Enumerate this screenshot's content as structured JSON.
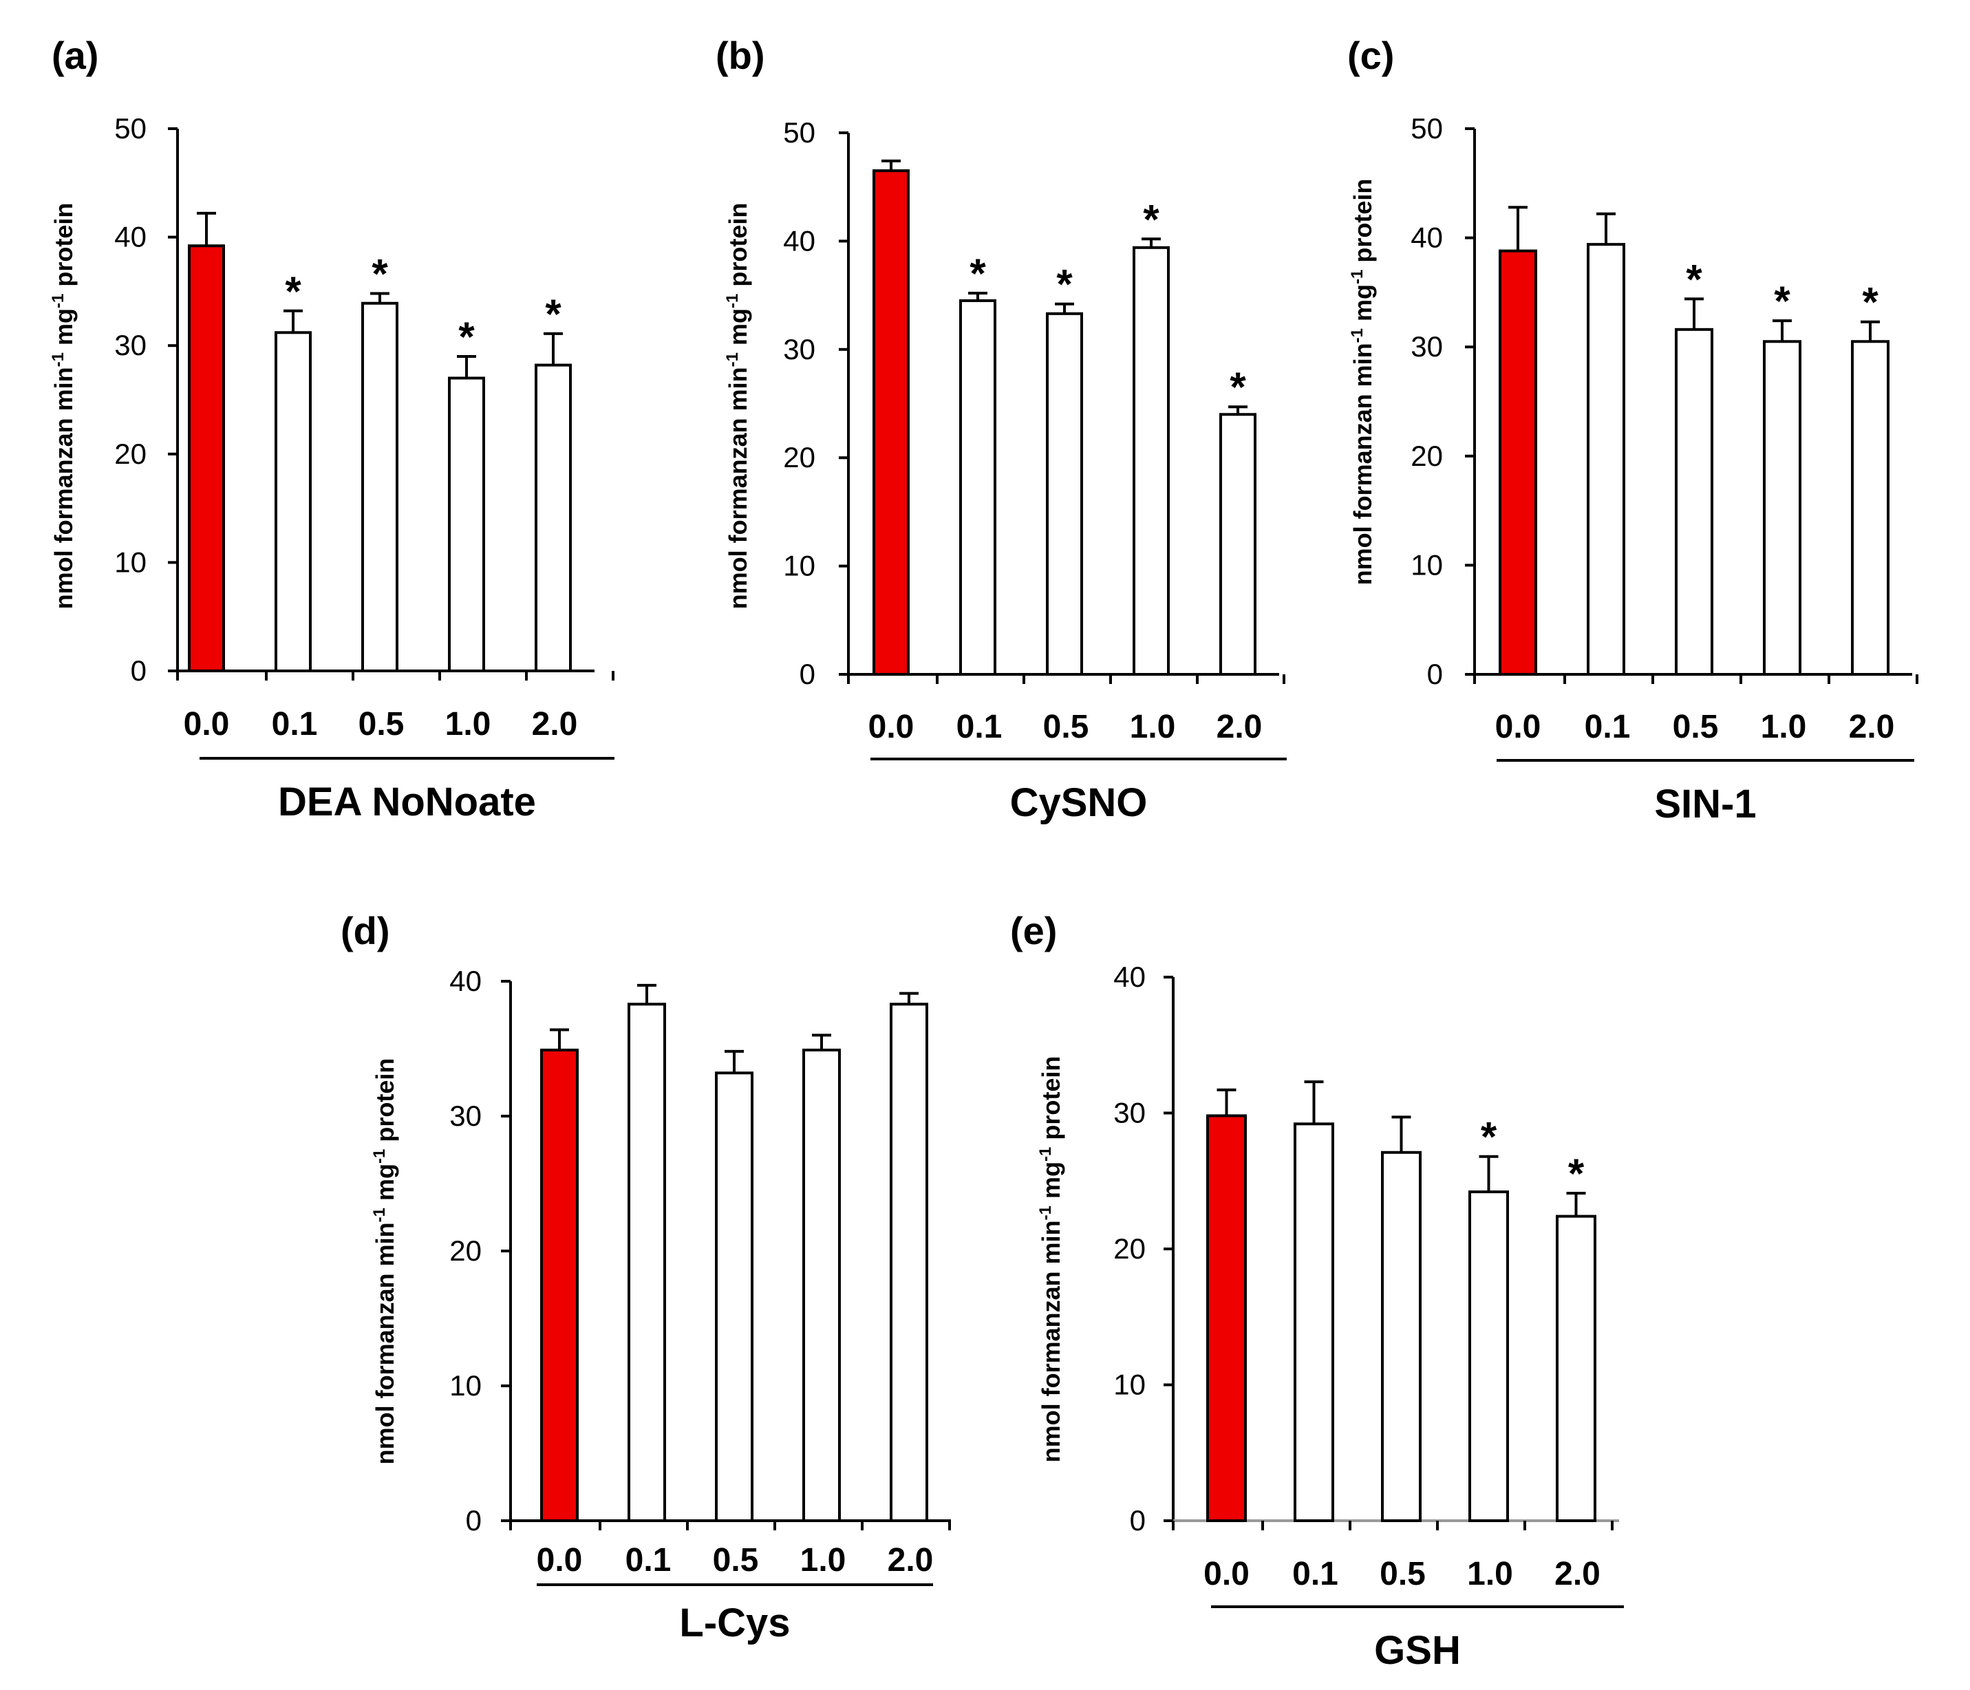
{
  "figure": {
    "colors": {
      "control": "#ee0000",
      "treated": "#ffffff",
      "stroke": "#000000",
      "axis_d_e_baseline": "#999999"
    }
  },
  "chart_data": [
    {
      "panel": "(a)",
      "type": "bar",
      "categories": [
        "0.0",
        "0.1",
        "0.5",
        "1.0",
        "2.0"
      ],
      "values": [
        39.2,
        31.2,
        33.9,
        27.0,
        28.2
      ],
      "errors": [
        3.0,
        2.0,
        0.9,
        2.0,
        2.9
      ],
      "significant": [
        false,
        true,
        true,
        true,
        true
      ],
      "sig_marker": "*",
      "ylabel": "nmol formanzan min",
      "ylabel_sup1": "-1",
      "ylabel_mid": " mg",
      "ylabel_sup2": "-1",
      "ylabel_end": " protein",
      "xlabel": "DEA NoNoate",
      "ylim": [
        0,
        50
      ],
      "yticks": [
        "0",
        "10",
        "20",
        "30",
        "40",
        "50"
      ]
    },
    {
      "panel": "(b)",
      "type": "bar",
      "categories": [
        "0.0",
        "0.1",
        "0.5",
        "1.0",
        "2.0"
      ],
      "values": [
        46.5,
        34.5,
        33.3,
        39.4,
        24.0
      ],
      "errors": [
        0.9,
        0.7,
        0.9,
        0.8,
        0.7
      ],
      "significant": [
        false,
        true,
        true,
        true,
        true
      ],
      "sig_marker": "*",
      "ylabel": "nmol formanzan min",
      "ylabel_sup1": "-1",
      "ylabel_mid": " mg",
      "ylabel_sup2": "-1",
      "ylabel_end": " protein",
      "xlabel": "CySNO",
      "ylim": [
        0,
        50
      ],
      "yticks": [
        "0",
        "10",
        "20",
        "30",
        "40",
        "50"
      ]
    },
    {
      "panel": "(c)",
      "type": "bar",
      "categories": [
        "0.0",
        "0.1",
        "0.5",
        "1.0",
        "2.0"
      ],
      "values": [
        38.8,
        39.4,
        31.6,
        30.5,
        30.5
      ],
      "errors": [
        4.0,
        2.8,
        2.8,
        1.9,
        1.8
      ],
      "significant": [
        false,
        false,
        true,
        true,
        true
      ],
      "sig_marker": "*",
      "ylabel": "nmol formanzan min",
      "ylabel_sup1": "-1",
      "ylabel_mid": " mg",
      "ylabel_sup2": "-1",
      "ylabel_end": " protein",
      "xlabel": "SIN-1",
      "ylim": [
        0,
        50
      ],
      "yticks": [
        "0",
        "10",
        "20",
        "30",
        "40",
        "50"
      ]
    },
    {
      "panel": "(d)",
      "type": "bar",
      "categories": [
        "0.0",
        "0.1",
        "0.5",
        "1.0",
        "2.0"
      ],
      "values": [
        34.9,
        38.3,
        33.2,
        34.9,
        38.3
      ],
      "errors": [
        1.5,
        1.4,
        1.6,
        1.1,
        0.8
      ],
      "significant": [
        false,
        false,
        false,
        false,
        false
      ],
      "sig_marker": "*",
      "ylabel": "nmol formanzan min",
      "ylabel_sup1": "-1",
      "ylabel_mid": " mg",
      "ylabel_sup2": "-1",
      "ylabel_end": " protein",
      "xlabel": "L-Cys",
      "ylim": [
        0,
        40
      ],
      "yticks": [
        "0",
        "10",
        "20",
        "30",
        "40"
      ]
    },
    {
      "panel": "(e)",
      "type": "bar",
      "categories": [
        "0.0",
        "0.1",
        "0.5",
        "1.0",
        "2.0"
      ],
      "values": [
        29.8,
        29.2,
        27.1,
        24.2,
        22.4
      ],
      "errors": [
        1.9,
        3.1,
        2.6,
        2.6,
        1.7
      ],
      "significant": [
        false,
        false,
        false,
        true,
        true
      ],
      "sig_marker": "*",
      "ylabel": "nmol formanzan min",
      "ylabel_sup1": "-1",
      "ylabel_mid": " mg",
      "ylabel_sup2": "-1",
      "ylabel_end": " protein",
      "xlabel": "GSH",
      "ylim": [
        0,
        40
      ],
      "yticks": [
        "0",
        "10",
        "20",
        "30",
        "40"
      ]
    }
  ]
}
